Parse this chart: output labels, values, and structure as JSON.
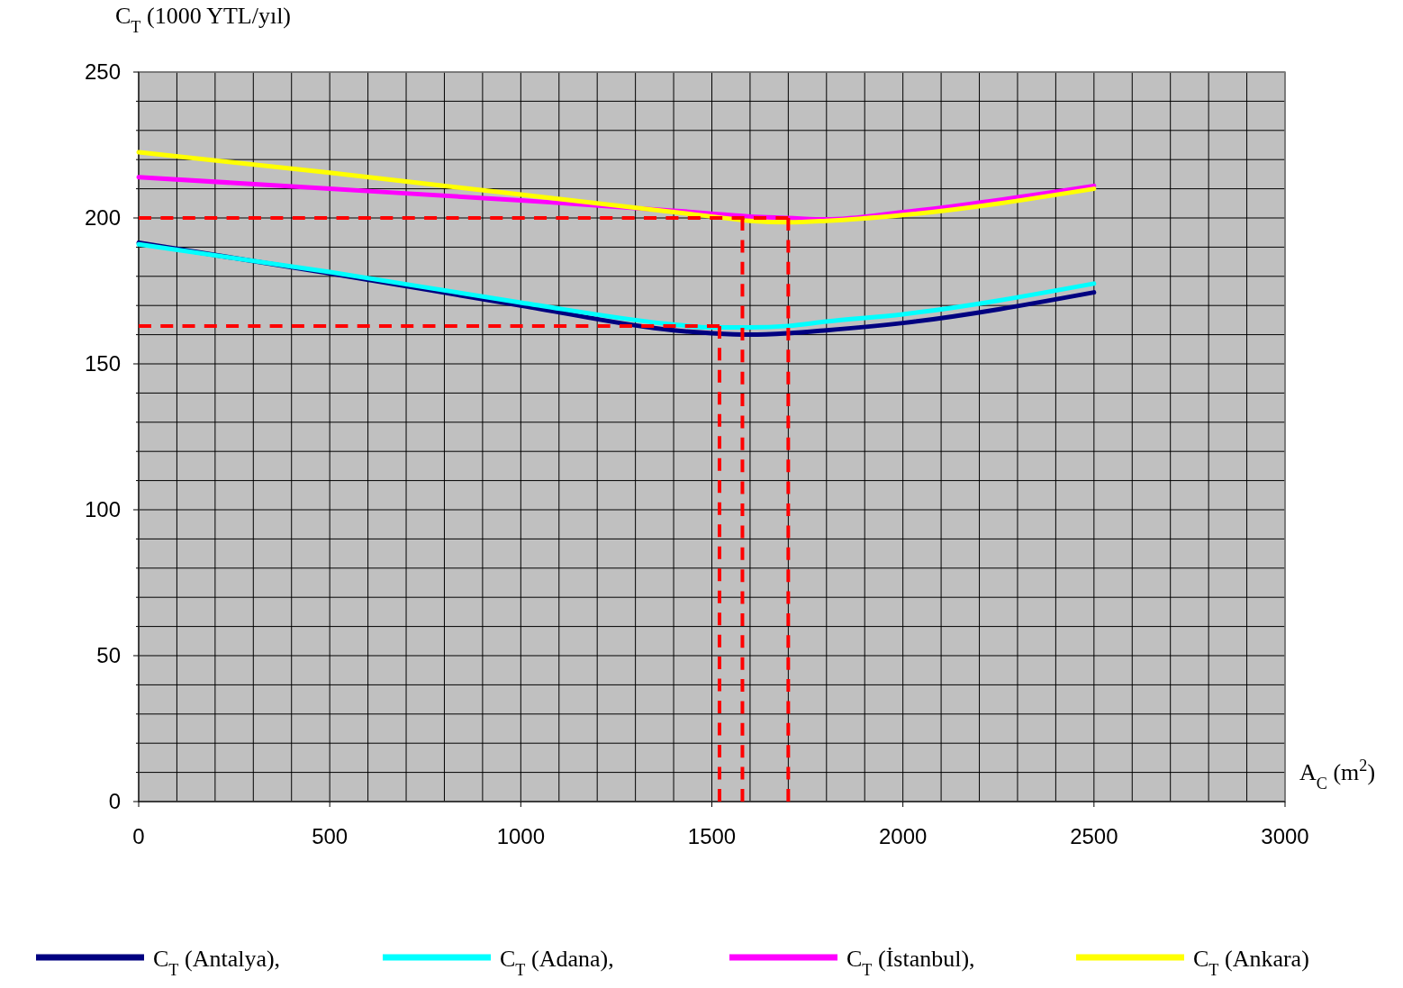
{
  "chart_data": {
    "type": "line",
    "xlabel": "A$_{C}$ (m$^{2}$)",
    "ylabel": "C$_{T}$ (1000 YTL/yıl)",
    "x": [
      0,
      500,
      1000,
      1400,
      1500,
      1600,
      1700,
      1800,
      2000,
      2500
    ],
    "series": [
      {
        "name": "C$_{T}$ (Antalya),",
        "color": "#000080",
        "values": [
          191.5,
          181,
          170,
          161.5,
          160.5,
          160,
          160.5,
          161.5,
          164,
          174.5
        ]
      },
      {
        "name": "C$_{T}$ (Adana),",
        "color": "#00ffff",
        "values": [
          191,
          181.5,
          171,
          163.5,
          162.5,
          162.5,
          163,
          164.5,
          167,
          177.5
        ]
      },
      {
        "name": "C$_{T}$ (İstanbul),",
        "color": "#ff00ff",
        "values": [
          214,
          210,
          206,
          202.5,
          201.5,
          200.5,
          200,
          199.5,
          202,
          211
        ]
      },
      {
        "name": "C$_{T}$ (Ankara)",
        "color": "#ffff00",
        "values": [
          222.5,
          215.5,
          208,
          202,
          200.5,
          199,
          198.5,
          199,
          201,
          210
        ]
      },
      {
        "color": "#ff0000",
        "line_style": "dashed",
        "x": [
          0,
          1700
        ],
        "values": [
          200,
          200
        ]
      },
      {
        "color": "#ff0000",
        "line_style": "dashed",
        "x": [
          0,
          1520
        ],
        "values": [
          163,
          163
        ]
      },
      {
        "color": "#ff0000",
        "line_style": "dashed",
        "x": [
          1520,
          1520
        ],
        "values": [
          0,
          163
        ]
      },
      {
        "color": "#ff0000",
        "line_style": "dashed",
        "x": [
          1580,
          1580
        ],
        "values": [
          0,
          200
        ]
      },
      {
        "color": "#ff0000",
        "line_style": "dashed",
        "x": [
          1700,
          1700
        ],
        "values": [
          0,
          200
        ]
      }
    ],
    "xlim": [
      0,
      3000
    ],
    "ylim": [
      0,
      250
    ],
    "xticks": [
      0,
      {
        "value": 100,
        "label": null
      },
      {
        "value": 200,
        "label": null
      },
      {
        "value": 300,
        "label": null
      },
      {
        "value": 400,
        "label": null
      },
      500,
      {
        "value": 600,
        "label": null
      },
      {
        "value": 700,
        "label": null
      },
      {
        "value": 800,
        "label": null
      },
      {
        "value": 900,
        "label": null
      },
      1000,
      {
        "value": 1100,
        "label": null
      },
      {
        "value": 1200,
        "label": null
      },
      {
        "value": 1300,
        "label": null
      },
      {
        "value": 1400,
        "label": null
      },
      1500,
      {
        "value": 1600,
        "label": null
      },
      {
        "value": 1700,
        "label": null
      },
      {
        "value": 1800,
        "label": null
      },
      {
        "value": 1900,
        "label": null
      },
      2000,
      {
        "value": 2100,
        "label": null
      },
      {
        "value": 2200,
        "label": null
      },
      {
        "value": 2300,
        "label": null
      },
      {
        "value": 2400,
        "label": null
      },
      2500,
      {
        "value": 2600,
        "label": null
      },
      {
        "value": 2700,
        "label": null
      },
      {
        "value": 2800,
        "label": null
      },
      {
        "value": 2900,
        "label": null
      },
      3000
    ],
    "yticks": [
      0,
      {
        "value": 10,
        "label": null
      },
      {
        "value": 20,
        "label": null
      },
      {
        "value": 30,
        "label": null
      },
      {
        "value": 40,
        "label": null
      },
      50,
      {
        "value": 60,
        "label": null
      },
      {
        "value": 70,
        "label": null
      },
      {
        "value": 80,
        "label": null
      },
      {
        "value": 90,
        "label": null
      },
      100,
      {
        "value": 110,
        "label": null
      },
      {
        "value": 120,
        "label": null
      },
      {
        "value": 130,
        "label": null
      },
      {
        "value": 140,
        "label": null
      },
      150,
      {
        "value": 160,
        "label": null
      },
      {
        "value": 170,
        "label": null
      },
      {
        "value": 180,
        "label": null
      },
      {
        "value": 190,
        "label": null
      },
      200,
      {
        "value": 210,
        "label": null
      },
      {
        "value": 220,
        "label": null
      },
      {
        "value": 230,
        "label": null
      },
      {
        "value": 240,
        "label": null
      },
      250
    ],
    "grid": true,
    "legend": "bottom",
    "line_style": "solid",
    "marker": "none"
  }
}
